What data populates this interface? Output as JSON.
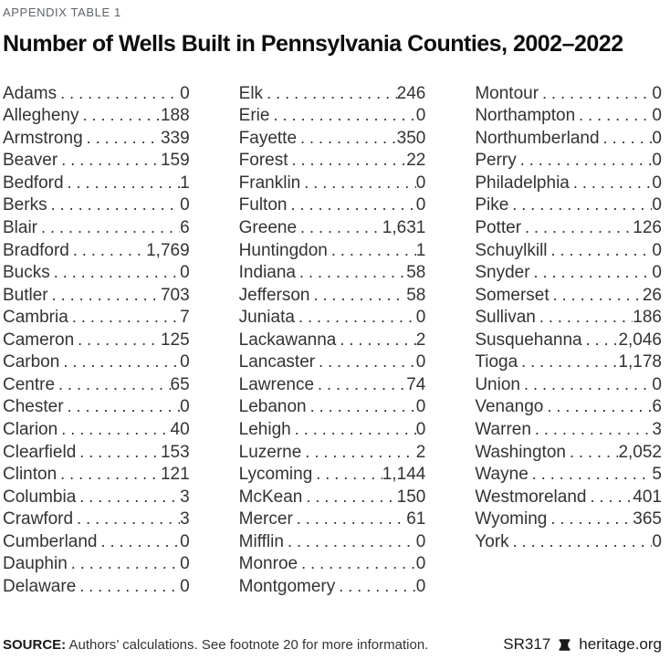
{
  "header": {
    "eyebrow": "APPENDIX TABLE 1",
    "title": "Number of Wells Built in Pennsylvania Counties, 2002–2022"
  },
  "table": {
    "columns": [
      {
        "rows": [
          {
            "county": "Adams",
            "value": "0"
          },
          {
            "county": "Allegheny",
            "value": "188"
          },
          {
            "county": "Armstrong",
            "value": "339"
          },
          {
            "county": "Beaver",
            "value": "159"
          },
          {
            "county": "Bedford",
            "value": "1"
          },
          {
            "county": "Berks",
            "value": "0"
          },
          {
            "county": "Blair",
            "value": "6"
          },
          {
            "county": "Bradford",
            "value": "1,769"
          },
          {
            "county": "Bucks",
            "value": "0"
          },
          {
            "county": "Butler",
            "value": "703"
          },
          {
            "county": "Cambria",
            "value": "7"
          },
          {
            "county": "Cameron",
            "value": "125"
          },
          {
            "county": "Carbon",
            "value": "0"
          },
          {
            "county": "Centre",
            "value": "65"
          },
          {
            "county": "Chester",
            "value": "0"
          },
          {
            "county": "Clarion",
            "value": "40"
          },
          {
            "county": "Clearfield",
            "value": "153"
          },
          {
            "county": "Clinton",
            "value": "121"
          },
          {
            "county": "Columbia",
            "value": "3"
          },
          {
            "county": "Crawford",
            "value": "3"
          },
          {
            "county": "Cumberland",
            "value": "0"
          },
          {
            "county": "Dauphin",
            "value": "0"
          },
          {
            "county": "Delaware",
            "value": "0"
          }
        ]
      },
      {
        "rows": [
          {
            "county": "Elk",
            "value": "246"
          },
          {
            "county": "Erie",
            "value": "0"
          },
          {
            "county": "Fayette",
            "value": "350"
          },
          {
            "county": "Forest",
            "value": "22"
          },
          {
            "county": "Franklin",
            "value": "0"
          },
          {
            "county": "Fulton",
            "value": "0"
          },
          {
            "county": "Greene",
            "value": "1,631"
          },
          {
            "county": "Huntingdon",
            "value": "1"
          },
          {
            "county": "Indiana",
            "value": "58"
          },
          {
            "county": "Jefferson",
            "value": "58"
          },
          {
            "county": "Juniata",
            "value": "0"
          },
          {
            "county": "Lackawanna",
            "value": "2"
          },
          {
            "county": "Lancaster",
            "value": "0"
          },
          {
            "county": "Lawrence",
            "value": "74"
          },
          {
            "county": "Lebanon",
            "value": "0"
          },
          {
            "county": "Lehigh",
            "value": "0"
          },
          {
            "county": "Luzerne",
            "value": "2"
          },
          {
            "county": "Lycoming",
            "value": "1,144"
          },
          {
            "county": "McKean",
            "value": "150"
          },
          {
            "county": "Mercer",
            "value": "61"
          },
          {
            "county": "Mifflin",
            "value": "0"
          },
          {
            "county": "Monroe",
            "value": "0"
          },
          {
            "county": "Montgomery",
            "value": "0"
          }
        ]
      },
      {
        "rows": [
          {
            "county": "Montour",
            "value": "0"
          },
          {
            "county": "Northampton",
            "value": "0"
          },
          {
            "county": "Northumberland",
            "value": "0"
          },
          {
            "county": "Perry",
            "value": "0"
          },
          {
            "county": "Philadelphia",
            "value": "0"
          },
          {
            "county": "Pike",
            "value": "0"
          },
          {
            "county": "Potter",
            "value": "126"
          },
          {
            "county": "Schuylkill",
            "value": "0"
          },
          {
            "county": "Snyder",
            "value": "0"
          },
          {
            "county": "Somerset",
            "value": "26"
          },
          {
            "county": "Sullivan",
            "value": "186"
          },
          {
            "county": "Susquehanna",
            "value": "2,046"
          },
          {
            "county": "Tioga",
            "value": "1,178"
          },
          {
            "county": "Union",
            "value": "0"
          },
          {
            "county": "Venango",
            "value": "6"
          },
          {
            "county": "Warren",
            "value": "3"
          },
          {
            "county": "Washington",
            "value": "2,052"
          },
          {
            "county": "Wayne",
            "value": "5"
          },
          {
            "county": "Westmoreland",
            "value": "401"
          },
          {
            "county": "Wyoming",
            "value": "365"
          },
          {
            "county": "York",
            "value": "0"
          }
        ]
      }
    ]
  },
  "footer": {
    "source_label": "SOURCE:",
    "source_text": " Authors’ calculations. See footnote 20 for more information.",
    "report_id": "SR317",
    "brand_icon": "liberty-bell-icon",
    "brand": "heritage.org"
  },
  "colors": {
    "title": "#0D0D0D",
    "eyebrow": "#5F6368",
    "body": "#333333"
  }
}
